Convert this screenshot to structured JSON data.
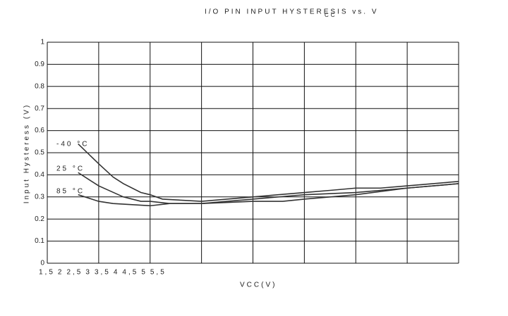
{
  "chart_data": {
    "type": "line",
    "title": "I/O PIN INPUT HYSTERESIS vs. V",
    "title_subscript": "CC",
    "xlabel": "VCC(V)",
    "ylabel": "Input Hysteress (V)",
    "xlim": [
      1.5,
      5.5
    ],
    "xticks": [
      {
        "value": 1.5,
        "label": "1,5"
      },
      2,
      {
        "value": 2.5,
        "label": "2,5"
      },
      3,
      {
        "value": 3.5,
        "label": "3,5"
      },
      4,
      {
        "value": 4.5,
        "label": "4,5"
      },
      5,
      {
        "value": 5.5,
        "label": "5,5"
      }
    ],
    "ylim": [
      0,
      1
    ],
    "yticks": [
      0,
      0.1,
      0.2,
      0.3,
      0.4,
      0.5,
      0.6,
      0.7,
      0.8,
      0.9,
      1
    ],
    "grid": true,
    "series": [
      {
        "name": "-40 °C",
        "color": "#333333",
        "x": [
          1.8,
          2.0,
          2.14,
          2.24,
          2.41,
          2.5,
          2.62,
          3.0,
          3.5,
          4.0,
          4.26,
          4.5,
          4.74,
          5.0,
          5.5
        ],
        "values": [
          0.54,
          0.45,
          0.39,
          0.36,
          0.32,
          0.31,
          0.29,
          0.28,
          0.3,
          0.32,
          0.33,
          0.34,
          0.34,
          0.35,
          0.37
        ]
      },
      {
        "name": "25 °C",
        "color": "#333333",
        "x": [
          1.8,
          2.0,
          2.24,
          2.41,
          2.5,
          2.69,
          3.0,
          3.5,
          4.0,
          4.5,
          5.0,
          5.5
        ],
        "values": [
          0.41,
          0.35,
          0.3,
          0.28,
          0.28,
          0.27,
          0.27,
          0.29,
          0.31,
          0.32,
          0.34,
          0.36
        ]
      },
      {
        "name": "85 °C",
        "color": "#333333",
        "x": [
          1.8,
          2.0,
          2.14,
          2.5,
          2.69,
          3.0,
          3.5,
          3.79,
          4.0,
          4.5,
          5.0,
          5.5
        ],
        "values": [
          0.31,
          0.28,
          0.27,
          0.26,
          0.27,
          0.27,
          0.28,
          0.28,
          0.29,
          0.31,
          0.34,
          0.36
        ]
      }
    ]
  }
}
